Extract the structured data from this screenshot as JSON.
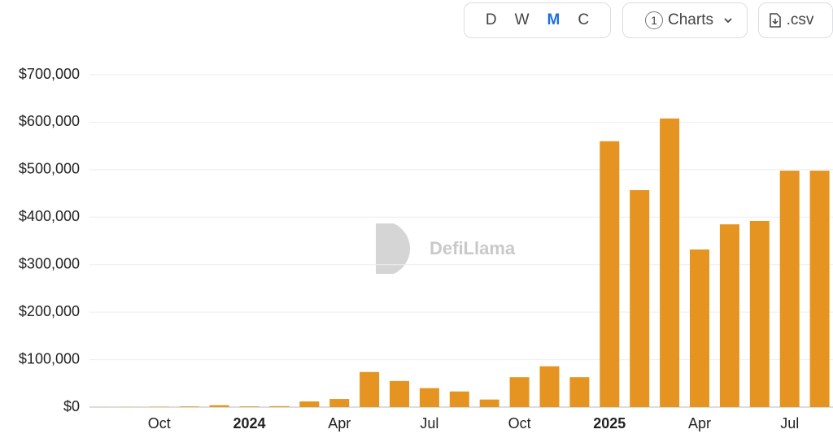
{
  "toolbar": {
    "intervals": [
      "D",
      "W",
      "M",
      "C"
    ],
    "charts_count": "1",
    "charts_label": "Charts",
    "csv_label": ".csv"
  },
  "watermark": "DefiLlama",
  "chart_data": {
    "type": "bar",
    "color": "#e59421",
    "grid": true,
    "categories": [
      null,
      null,
      "Oct",
      null,
      null,
      "2024",
      null,
      null,
      "Apr",
      null,
      null,
      "Jul",
      null,
      null,
      "Oct",
      null,
      null,
      "2025",
      null,
      null,
      "Apr",
      null,
      null,
      "Jul",
      null
    ],
    "values": [
      200,
      500,
      1000,
      1500,
      4000,
      1500,
      2000,
      12000,
      17000,
      74000,
      55000,
      40000,
      33000,
      16000,
      63000,
      86000,
      63000,
      560000,
      457000,
      608000,
      332000,
      385000,
      392000,
      498000,
      498000
    ],
    "ylim": [
      0,
      700000
    ],
    "yticks": [
      {
        "value": 0,
        "label": "$0"
      },
      {
        "value": 100000,
        "label": "$100,000"
      },
      {
        "value": 200000,
        "label": "$200,000"
      },
      {
        "value": 300000,
        "label": "$300,000"
      },
      {
        "value": 400000,
        "label": "$400,000"
      },
      {
        "value": 500000,
        "label": "$500,000"
      },
      {
        "value": 600000,
        "label": "$600,000"
      },
      {
        "value": 700000,
        "label": "$700,000"
      }
    ]
  }
}
